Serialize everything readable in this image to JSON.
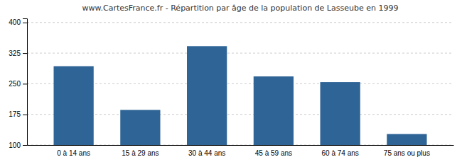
{
  "chart_data": {
    "type": "bar",
    "title": "www.CartesFrance.fr - Répartition par âge de la population de Lasseube en 1999",
    "categories": [
      "0 à 14 ans",
      "15 à 29 ans",
      "30 à 44 ans",
      "45 à 59 ans",
      "60 à 74 ans",
      "75 ans ou plus"
    ],
    "values": [
      293,
      186,
      342,
      268,
      254,
      127
    ],
    "color": "#2e6496",
    "ylim": [
      100,
      410
    ],
    "yticks": [
      100,
      175,
      250,
      325,
      400
    ],
    "grid": true
  }
}
